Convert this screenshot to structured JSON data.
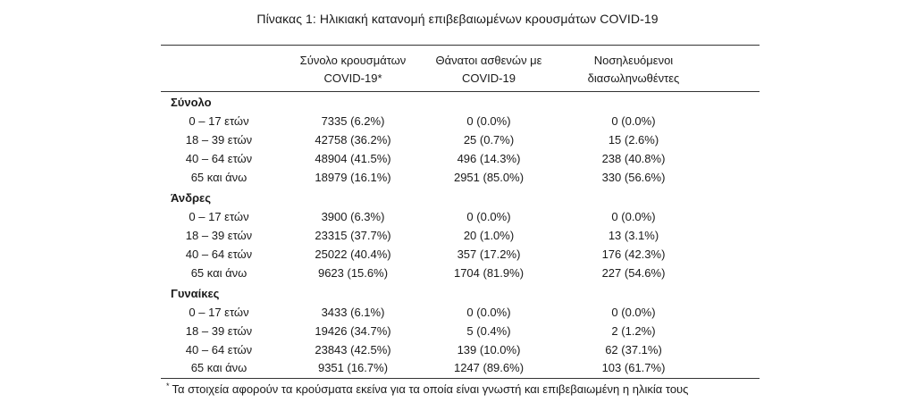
{
  "caption": "Πίνακας 1: Ηλικιακή κατανομή επιβεβαιωμένων κρουσμάτων COVID-19",
  "headers": {
    "col1_line1": "Σύνολο κρουσμάτων",
    "col1_line2": "COVID-19*",
    "col2_line1": "Θάνατοι ασθενών με",
    "col2_line2": "COVID-19",
    "col3_line1": "Νοσηλευόμενοι",
    "col3_line2": "διασωληνωθέντες"
  },
  "groups": [
    {
      "title": "Σύνολο",
      "rows": [
        {
          "age": "0 – 17 ετών",
          "cases": "7335 (6.2%)",
          "deaths": "0 (0.0%)",
          "intubated": "0 (0.0%)"
        },
        {
          "age": "18 – 39 ετών",
          "cases": "42758 (36.2%)",
          "deaths": "25 (0.7%)",
          "intubated": "15 (2.6%)"
        },
        {
          "age": "40 – 64 ετών",
          "cases": "48904 (41.5%)",
          "deaths": "496 (14.3%)",
          "intubated": "238 (40.8%)"
        },
        {
          "age": "65 και άνω",
          "cases": "18979 (16.1%)",
          "deaths": "2951 (85.0%)",
          "intubated": "330 (56.6%)"
        }
      ]
    },
    {
      "title": "Άνδρες",
      "rows": [
        {
          "age": "0 – 17 ετών",
          "cases": "3900 (6.3%)",
          "deaths": "0 (0.0%)",
          "intubated": "0 (0.0%)"
        },
        {
          "age": "18 – 39 ετών",
          "cases": "23315 (37.7%)",
          "deaths": "20 (1.0%)",
          "intubated": "13 (3.1%)"
        },
        {
          "age": "40 – 64 ετών",
          "cases": "25022 (40.4%)",
          "deaths": "357 (17.2%)",
          "intubated": "176 (42.3%)"
        },
        {
          "age": "65 και άνω",
          "cases": "9623 (15.6%)",
          "deaths": "1704 (81.9%)",
          "intubated": "227 (54.6%)"
        }
      ]
    },
    {
      "title": "Γυναίκες",
      "rows": [
        {
          "age": "0 – 17 ετών",
          "cases": "3433 (6.1%)",
          "deaths": "0 (0.0%)",
          "intubated": "0 (0.0%)"
        },
        {
          "age": "18 – 39 ετών",
          "cases": "19426 (34.7%)",
          "deaths": "5 (0.4%)",
          "intubated": "2 (1.2%)"
        },
        {
          "age": "40 – 64 ετών",
          "cases": "23843 (42.5%)",
          "deaths": "139 (10.0%)",
          "intubated": "62 (37.1%)"
        },
        {
          "age": "65 και άνω",
          "cases": "9351 (16.7%)",
          "deaths": "1247 (89.6%)",
          "intubated": "103 (61.7%)"
        }
      ]
    }
  ],
  "footnote": {
    "marker": "*",
    "text": "Τα στοιχεία αφορούν τα κρούσματα εκείνα για τα οποία είναι γνωστή και επιβεβαιωμένη η ηλικία τους"
  }
}
